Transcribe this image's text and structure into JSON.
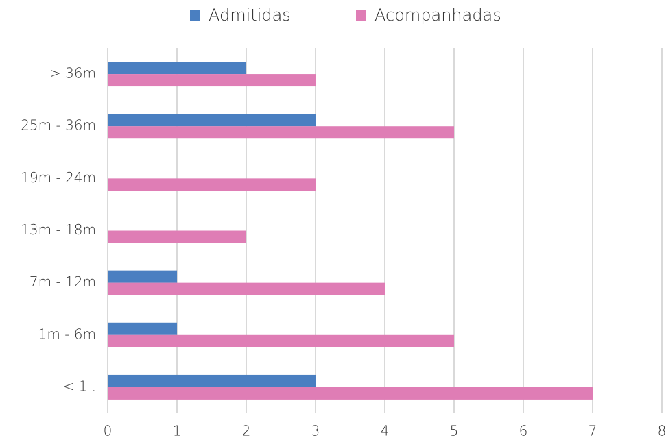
{
  "chart_data": {
    "type": "barh",
    "categories": [
      "> 36m",
      "25m - 36m",
      "19m - 24m",
      "13m - 18m",
      "7m - 12m",
      "1m - 6m",
      "< 1 ."
    ],
    "series": [
      {
        "name": "Admitidas",
        "color": "#4a7fc1",
        "values": [
          2,
          3,
          0,
          0,
          1,
          1,
          3
        ]
      },
      {
        "name": "Acompanhadas",
        "color": "#df7db5",
        "values": [
          3,
          5,
          3,
          2,
          4,
          5,
          7
        ]
      }
    ],
    "xlim": [
      0,
      8
    ],
    "xticks": [
      0,
      1,
      2,
      3,
      4,
      5,
      6,
      7,
      8
    ],
    "grid": true,
    "legend": "top"
  }
}
